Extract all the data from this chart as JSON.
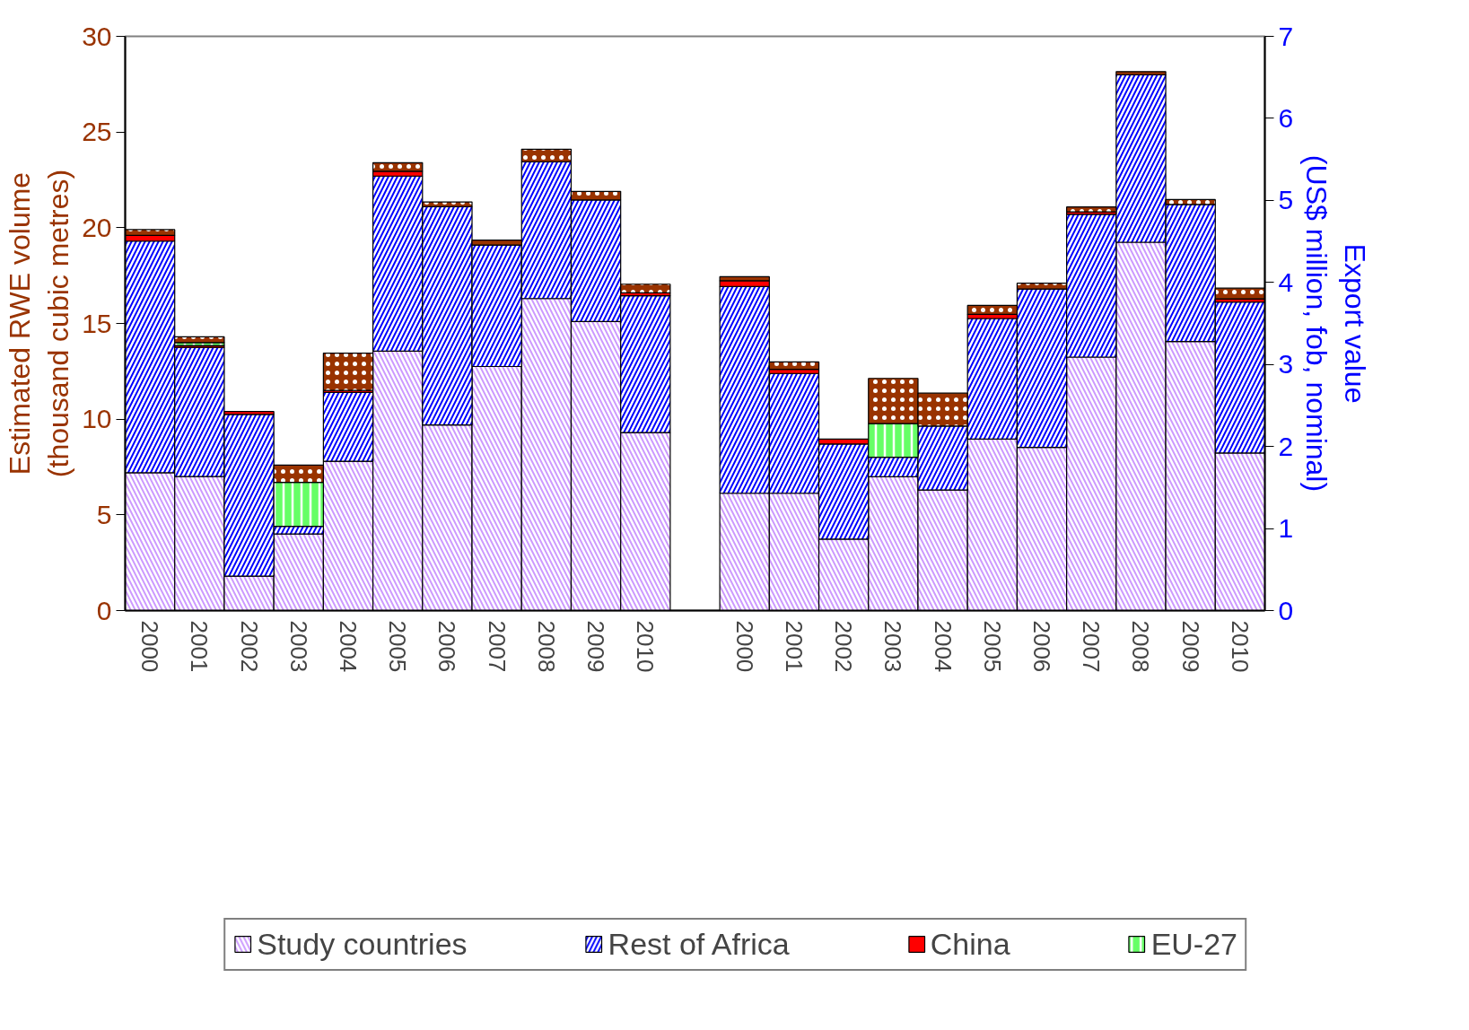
{
  "chart_data": {
    "type": "bar",
    "stacked": true,
    "ylabel": "Estimated RWE volume\n(thousand cubic metres)",
    "y2label": "Export value\n(US$ million, fob, nominal)",
    "categories": [
      "2000",
      "2001",
      "2002",
      "2003",
      "2004",
      "2005",
      "2006",
      "2007",
      "2008",
      "2009",
      "2010",
      null,
      "2000",
      "2001",
      "2002",
      "2003",
      "2004",
      "2005",
      "2006",
      "2007",
      "2008",
      "2009",
      "2010"
    ],
    "ylim": [
      0,
      30
    ],
    "yticks": [
      0,
      5,
      10,
      15,
      20,
      25,
      30
    ],
    "y2lim": [
      0,
      7
    ],
    "y2ticks": [
      0,
      1,
      2,
      3,
      4,
      5,
      6,
      7
    ],
    "grid": false,
    "legend": "bottom",
    "series": [
      {
        "name": "Study countries",
        "color": "#cc99ff",
        "values": [
          7.2,
          7.0,
          1.8,
          4.0,
          7.8,
          13.55,
          9.7,
          12.75,
          16.3,
          15.1,
          9.3,
          null,
          null,
          null,
          null,
          null,
          null,
          null,
          null,
          null,
          null,
          null,
          null
        ]
      },
      {
        "name": "Rest of Africa",
        "color": "#0000ff",
        "values": [
          12.1,
          6.75,
          8.45,
          0.4,
          3.6,
          9.15,
          11.4,
          6.35,
          7.15,
          6.35,
          7.15,
          null,
          null,
          null,
          null,
          null,
          null,
          null,
          null,
          null,
          null,
          null,
          null
        ]
      },
      {
        "name": "China",
        "color": "#ff0000",
        "values": [
          0.3,
          0.1,
          0.15,
          null,
          0.1,
          0.25,
          null,
          null,
          null,
          null,
          0.15,
          null,
          null,
          null,
          null,
          null,
          null,
          null,
          null,
          null,
          null,
          null,
          null
        ]
      },
      {
        "name": "EU-27",
        "color": "#66ff66",
        "values": [
          null,
          0.15,
          null,
          2.3,
          null,
          null,
          null,
          null,
          null,
          null,
          null,
          null,
          null,
          null,
          null,
          null,
          null,
          null,
          null,
          null,
          null,
          null,
          null
        ]
      },
      {
        "color": "#993300",
        "values": [
          0.3,
          0.3,
          null,
          0.9,
          1.95,
          0.45,
          0.25,
          0.25,
          0.65,
          0.45,
          0.45,
          null,
          null,
          null,
          null,
          null,
          null,
          null,
          null,
          null,
          null,
          null,
          null
        ]
      },
      {
        "color": "#cc99ff",
        "axis": "y2",
        "values": [
          null,
          null,
          null,
          null,
          null,
          null,
          null,
          null,
          null,
          null,
          null,
          null,
          1.43,
          1.43,
          0.87,
          1.63,
          1.47,
          2.09,
          1.99,
          3.09,
          4.49,
          3.28,
          1.92
        ]
      },
      {
        "color": "#0000ff",
        "axis": "y2",
        "values": [
          null,
          null,
          null,
          null,
          null,
          null,
          null,
          null,
          null,
          null,
          null,
          null,
          2.52,
          1.46,
          1.16,
          0.24,
          0.78,
          1.47,
          1.93,
          1.74,
          2.04,
          1.67,
          1.84
        ]
      },
      {
        "color": "#ff0000",
        "axis": "y2",
        "values": [
          null,
          null,
          null,
          null,
          null,
          null,
          null,
          null,
          null,
          null,
          null,
          null,
          0.07,
          0.05,
          0.06,
          null,
          null,
          0.05,
          null,
          0.03,
          null,
          null,
          0.04
        ]
      },
      {
        "color": "#66ff66",
        "axis": "y2",
        "values": [
          null,
          null,
          null,
          null,
          null,
          null,
          null,
          null,
          null,
          null,
          null,
          null,
          null,
          null,
          null,
          0.41,
          null,
          null,
          null,
          null,
          null,
          null,
          null
        ]
      },
      {
        "color": "#993300",
        "axis": "y2",
        "values": [
          null,
          null,
          null,
          null,
          null,
          null,
          null,
          null,
          null,
          null,
          null,
          null,
          0.05,
          0.09,
          null,
          0.55,
          0.4,
          0.11,
          0.07,
          0.06,
          0.04,
          0.06,
          0.13
        ]
      }
    ]
  }
}
